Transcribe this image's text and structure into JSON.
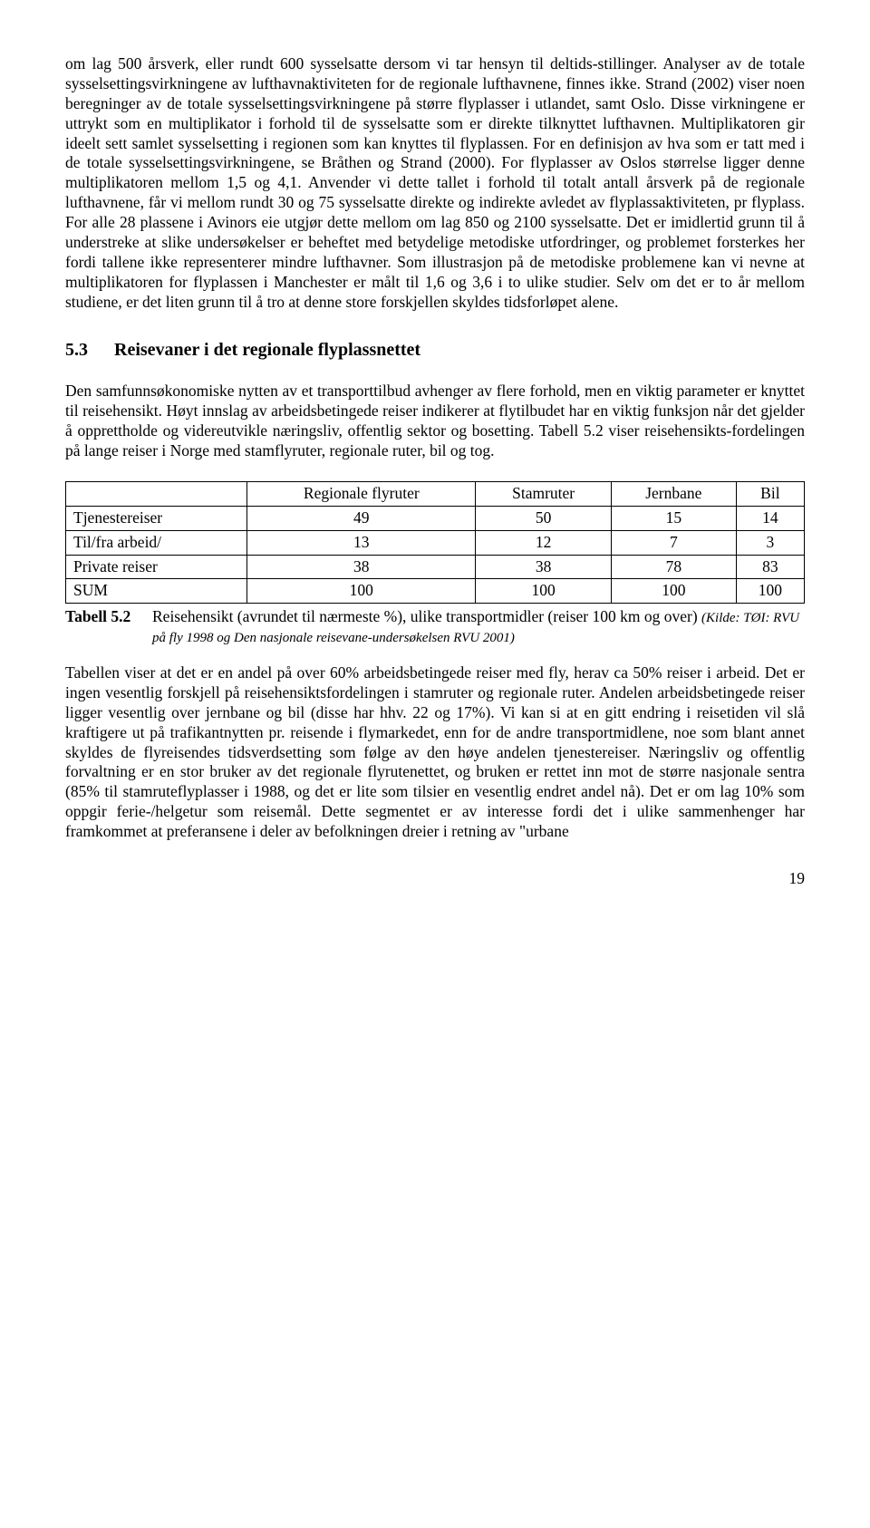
{
  "paragraph1": "om lag 500 årsverk, eller rundt 600 sysselsatte dersom vi tar hensyn til deltids-stillinger. Analyser av de totale sysselsettingsvirkningene av lufthavnaktiviteten for de regionale lufthavnene, finnes ikke. Strand (2002) viser noen beregninger av de totale sysselsettingsvirkningene på større flyplasser i utlandet, samt Oslo. Disse virkningene er uttrykt som en multiplikator i forhold til de sysselsatte som er direkte tilknyttet lufthavnen. Multiplikatoren gir ideelt sett samlet sysselsetting i regionen som kan knyttes til flyplassen. For en definisjon av hva som er tatt med i de totale sysselsettingsvirkningene, se Bråthen og Strand (2000). For flyplasser av Oslos størrelse ligger denne multiplikatoren mellom 1,5 og 4,1. Anvender vi dette tallet i forhold til totalt antall årsverk på de regionale lufthavnene, får vi mellom rundt 30 og 75 sysselsatte direkte og indirekte avledet av flyplassaktiviteten, pr flyplass. For alle 28 plassene i Avinors eie utgjør dette mellom om lag 850 og 2100 sysselsatte. Det er imidlertid grunn til å understreke at slike undersøkelser er beheftet med betydelige metodiske utfordringer, og problemet forsterkes her fordi tallene ikke representerer mindre lufthavner. Som illustrasjon på de metodiske problemene kan vi nevne at multiplikatoren for flyplassen i Manchester er målt til 1,6 og 3,6 i to ulike studier. Selv om det er to år mellom studiene, er det liten grunn til å tro at denne store forskjellen skyldes tidsforløpet alene.",
  "section": {
    "number": "5.3",
    "title": "Reisevaner i det regionale flyplassnettet"
  },
  "paragraph2": "Den samfunnsøkonomiske nytten av et transporttilbud avhenger av flere forhold, men en viktig parameter er knyttet til reisehensikt. Høyt innslag av arbeidsbetingede reiser indikerer at flytilbudet har en viktig funksjon når det gjelder å opprettholde og videreutvikle næringsliv, offentlig sektor og bosetting. Tabell 5.2 viser reisehensikts-fordelingen på lange reiser i Norge med stamflyruter, regionale ruter, bil og tog.",
  "table": {
    "columns": [
      "",
      "Regionale flyruter",
      "Stamruter",
      "Jernbane",
      "Bil"
    ],
    "rows": [
      [
        "Tjenestereiser",
        "49",
        "50",
        "15",
        "14"
      ],
      [
        "Til/fra arbeid/",
        "13",
        "12",
        "7",
        "3"
      ],
      [
        "Private reiser",
        "38",
        "38",
        "78",
        "83"
      ],
      [
        "SUM",
        "100",
        "100",
        "100",
        "100"
      ]
    ],
    "caption_label": "Tabell 5.2",
    "caption_text": "Reisehensikt (avrundet til nærmeste %), ulike transportmidler (reiser 100 km og over) ",
    "caption_source": "(Kilde: TØI: RVU på fly 1998 og Den nasjonale reisevane-undersøkelsen  RVU 2001)"
  },
  "paragraph3": "Tabellen viser at det er en andel på over 60% arbeidsbetingede reiser med fly, herav ca 50% reiser i arbeid.  Det er ingen vesentlig forskjell på reisehensiktsfordelingen i stamruter og regionale ruter. Andelen arbeidsbetingede reiser ligger vesentlig over jernbane og bil (disse har hhv. 22 og 17%).  Vi kan si at en gitt endring i reisetiden vil slå kraftigere ut på trafikantnytten pr. reisende i flymarkedet, enn for de andre transportmidlene, noe som blant annet skyldes de flyreisendes tidsverdsetting som følge av den høye andelen tjenestereiser. Næringsliv og offentlig forvaltning er en stor bruker av det regionale flyrutenettet, og bruken er rettet inn mot de større nasjonale sentra (85% til stamruteflyplasser i 1988, og det er lite som tilsier en vesentlig endret andel nå). Det er om lag 10% som oppgir ferie-/helgetur som reisemål. Dette segmentet er av interesse fordi det i ulike sammenhenger har framkommet at preferansene i deler av befolkningen dreier i retning av \"urbane",
  "page_number": "19"
}
